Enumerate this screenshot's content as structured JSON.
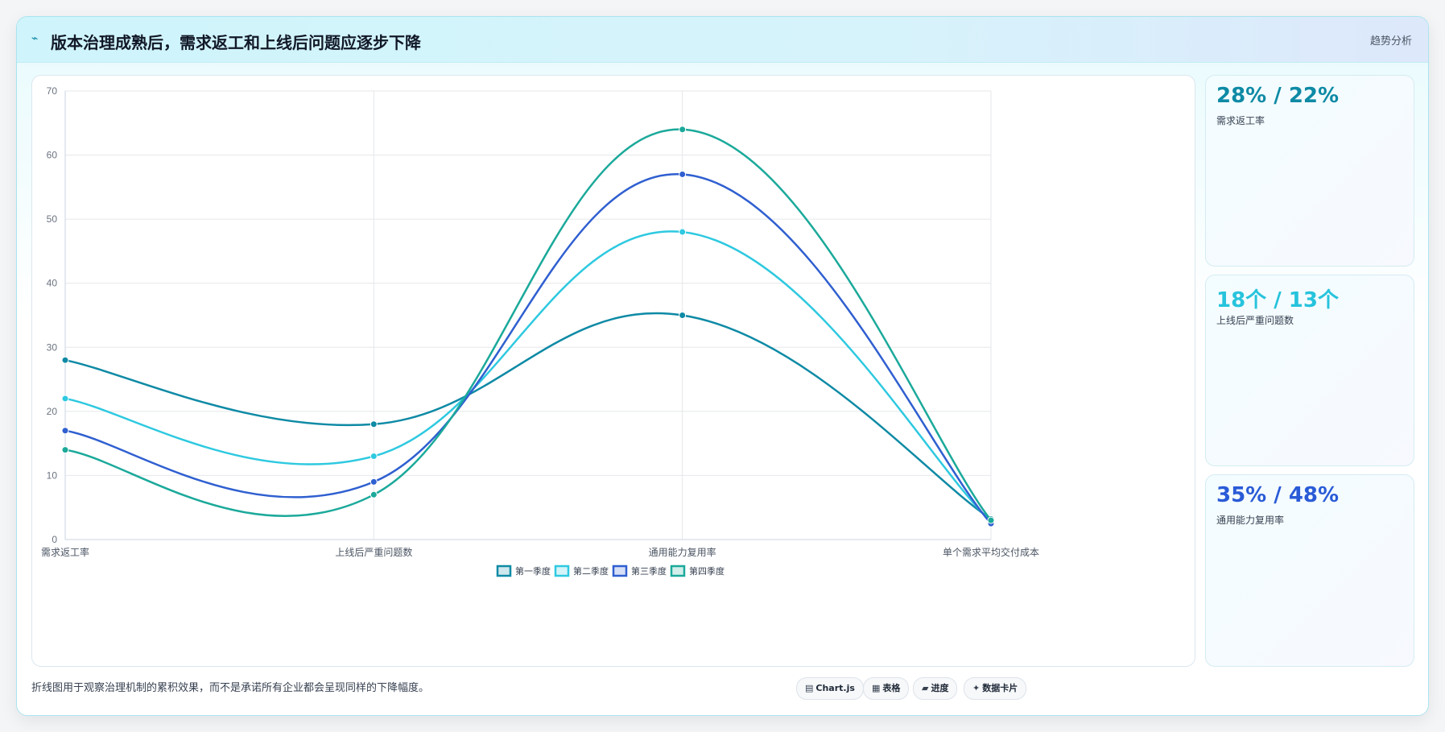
{
  "header": {
    "title": "版本治理成熟后，需求返工和上线后问题应逐步下降",
    "right_label": "趋势分析",
    "icon": "trend-icon"
  },
  "chart_data": {
    "type": "line",
    "categories": [
      "需求返工率",
      "上线后严重问题数",
      "通用能力复用率",
      "单个需求平均交付成本"
    ],
    "ylim": [
      0,
      70
    ],
    "yticks": [
      0,
      10,
      20,
      30,
      40,
      50,
      60,
      70
    ],
    "grid": true,
    "legend_position": "bottom",
    "series": [
      {
        "name": "第一季度",
        "values": [
          28,
          18,
          35,
          3.2
        ],
        "color": "#0e8aa5"
      },
      {
        "name": "第二季度",
        "values": [
          22,
          13,
          48,
          2.8
        ],
        "color": "#2ec9e0"
      },
      {
        "name": "第三季度",
        "values": [
          17,
          9,
          57,
          2.5
        ],
        "color": "#2f5fd0"
      },
      {
        "name": "第四季度",
        "values": [
          14,
          7,
          64,
          3.0
        ],
        "color": "#1ba99a"
      }
    ]
  },
  "stats": [
    {
      "value": "28% / 22%",
      "label": "需求返工率",
      "color": "#0e8aa5"
    },
    {
      "value": "18个 / 13个",
      "label": "上线后严重问题数",
      "color": "#27c3dc"
    },
    {
      "value": "35% / 48%",
      "label": "通用能力复用率",
      "color": "#2a5bd7"
    }
  ],
  "footer": {
    "note": "折线图用于观察治理机制的累积效果，而不是承诺所有企业都会呈现同样的下降幅度。",
    "chips": [
      {
        "icon": "chart-icon",
        "glyph": "▤",
        "label": "Chart.js"
      },
      {
        "icon": "table-icon",
        "glyph": "▦",
        "label": "表格"
      },
      {
        "icon": "progress-icon",
        "glyph": "▰",
        "label": "进度"
      },
      {
        "icon": "sparkle-icon",
        "glyph": "✦",
        "label": "数据卡片"
      }
    ]
  }
}
